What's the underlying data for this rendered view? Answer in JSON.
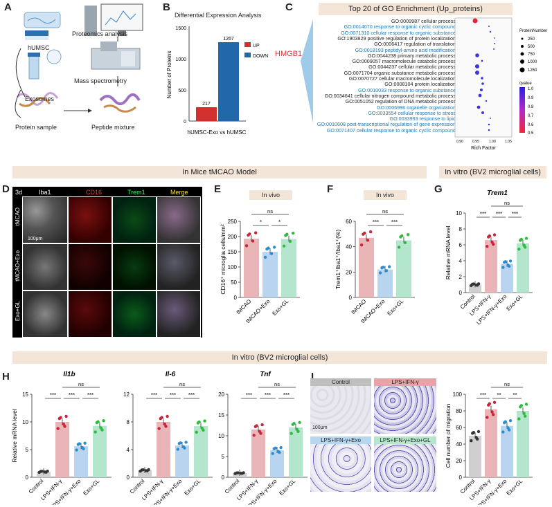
{
  "panels": {
    "a": "A",
    "b": "B",
    "c": "C",
    "d": "D",
    "e": "E",
    "f": "F",
    "g": "G",
    "h": "H",
    "i": "I"
  },
  "panelA": {
    "labels": [
      "hUMSC",
      "Exosomes",
      "Protein sample",
      "Peptide mixture",
      "Mass spectrometry",
      "Proteomics analysis"
    ]
  },
  "panelB": {
    "title": "Differential Expression Analysis",
    "ylabel": "Number of Proteins",
    "xlabel": "hUMSC-Exo vs hUMSC",
    "legend": [
      "UP",
      "DOWN"
    ],
    "colors": [
      "#d32f2f",
      "#2167a9"
    ],
    "bar_labels": [
      "217",
      "1267"
    ],
    "ticks": [
      "0",
      "500",
      "1000",
      "1500"
    ]
  },
  "panelC": {
    "title": "Top 20 of GO Enrichment (Up_proteins)",
    "hmgb1": "HMGB1",
    "xlabel": "Rich Factor",
    "size_legend_title": "ProteinNumber",
    "size_legend": [
      "250",
      "500",
      "750",
      "1000",
      "1250"
    ],
    "q_title": "qvalue",
    "q_ticks": [
      "1.0",
      "0.9",
      "0.8",
      "0.7",
      "0.6",
      "0.5"
    ],
    "terms": [
      {
        "t": "GO:0009987 cellular process",
        "blue": false
      },
      {
        "t": "GO:0014070 response to organic cyclic compound",
        "blue": true
      },
      {
        "t": "GO:0071310 cellular response to organic substance",
        "blue": true
      },
      {
        "t": "GO:1903829 positive regulation of protein localization",
        "blue": false
      },
      {
        "t": "GO:0006417 regulation of translation",
        "blue": false
      },
      {
        "t": "GO:0018193 peptidyl-amino acid modification",
        "blue": true
      },
      {
        "t": "GO:0044238 primary metabolic process",
        "blue": false
      },
      {
        "t": "GO:0009057 macromolecule catabolic process",
        "blue": false
      },
      {
        "t": "GO:0044237 cellular metabolic process",
        "blue": false
      },
      {
        "t": "GO:0071704 organic substance metabolic process",
        "blue": false
      },
      {
        "t": "GO:0070727 cellular macromolecule localization",
        "blue": false
      },
      {
        "t": "GO:0008104 protein localization",
        "blue": false
      },
      {
        "t": "GO:0010033 response to organic substance",
        "blue": true
      },
      {
        "t": "GO:0034641 cellular nitrogen compound metabolic process",
        "blue": false
      },
      {
        "t": "GO:0051052 regulation of DNA metabolic process",
        "blue": false
      },
      {
        "t": "GO:0006996 organelle organization",
        "blue": true
      },
      {
        "t": "GO:0033554 cellular response to stress",
        "blue": true
      },
      {
        "t": "GO:0033993 response to lipid",
        "blue": true
      },
      {
        "t": "GO:0010608 post-transcriptional regulation of gene expression",
        "blue": true
      },
      {
        "t": "GO:0071407 cellular response to organic cyclic compound",
        "blue": true
      }
    ],
    "x_ticks": [
      "0.90",
      "0.95",
      "1.00",
      "1.05"
    ]
  },
  "banners": {
    "mice": "In Mice tMCAO Model",
    "vitro1": "In vitro (BV2 microglial cells)",
    "vitro2": "In vitro (BV2 microglial cells)",
    "invivoE": "In vivo",
    "invivoF": "In vivo"
  },
  "panelD": {
    "day": "3d",
    "columns": [
      "Iba1",
      "CD16",
      "Trem1",
      "Merge"
    ],
    "rows": [
      "tMCAO",
      "tMCAO+Exo",
      "Exo+GL"
    ],
    "scale": "100μm"
  },
  "panelE": {
    "ylabel": "CD16⁺ microglia cells/mm²",
    "ticks": [
      "0",
      "50",
      "100",
      "150",
      "200",
      "250"
    ],
    "groups": [
      "tMCAO",
      "tMCAO+Exo",
      "Exo+GL"
    ],
    "sig": [
      "*",
      "*",
      "ns"
    ],
    "values": [
      193,
      150,
      192
    ]
  },
  "panelF": {
    "ylabel": "Trem1⁺Iba1⁺/Iba1⁺(%)",
    "ticks": [
      "0",
      "20",
      "40",
      "60"
    ],
    "groups": [
      "tMCAO",
      "tMCAO+Exo",
      "Exo+GL"
    ],
    "sig": [
      "***",
      "***",
      "ns"
    ],
    "values": [
      47,
      22,
      45
    ]
  },
  "panelG": {
    "title": "Trem1",
    "ylabel": "Relative mRNA level",
    "ticks": [
      "0",
      "2",
      "4",
      "6",
      "8",
      "10"
    ],
    "groups": [
      "Control",
      "LPS+IFN-γ",
      "LPS+IFN-γ+Exo",
      "Exo+GL"
    ],
    "sig": [
      "***",
      "***",
      "***",
      "ns"
    ],
    "values": [
      1.0,
      6.6,
      3.6,
      6.2
    ]
  },
  "panelH": [
    {
      "title": "Il1b",
      "ylabel": "Relative mRNA level",
      "ticks": [
        "0",
        "5",
        "10",
        "15"
      ],
      "groups": [
        "Control",
        "LPS+IFN-γ",
        "LPS+IFN-γ+Exo",
        "Exo+GL"
      ],
      "sig": [
        "***",
        "***",
        "***",
        "ns"
      ],
      "values": [
        1.0,
        10.0,
        5.6,
        9.3
      ]
    },
    {
      "title": "Il-6",
      "ylabel": "",
      "ticks": [
        "0",
        "4",
        "8",
        "12"
      ],
      "groups": [
        "Control",
        "LPS+IFN-γ",
        "LPS+IFN-γ+Exo",
        "Exo+GL"
      ],
      "sig": [
        "***",
        "***",
        "***",
        "ns"
      ],
      "values": [
        1.0,
        8.0,
        4.6,
        7.4
      ]
    },
    {
      "title": "Tnf",
      "ylabel": "",
      "ticks": [
        "0",
        "5",
        "10",
        "15",
        "20"
      ],
      "groups": [
        "Control",
        "LPS+IFN-γ",
        "LPS+IFN-γ+Exo",
        "Exo+GL"
      ],
      "sig": [
        "***",
        "***",
        "***",
        "ns"
      ],
      "values": [
        1.0,
        11.5,
        6.5,
        12.0
      ]
    }
  ],
  "panelI": {
    "images": [
      "Control",
      "LPS+IFN-γ",
      "LPS+IFN-γ+Exo",
      "LPS+IFN-γ+Exo+GL"
    ],
    "scale": "100μm",
    "ylabel": "Cell number of migration",
    "ticks": [
      "0",
      "20",
      "40",
      "60",
      "80",
      "100"
    ],
    "groups": [
      "Control",
      "LPS+IFN-γ",
      "LPS+IFN-γ+Exo",
      "Exo+GL"
    ],
    "sig": [
      "***",
      "**",
      "**",
      "ns"
    ],
    "values": [
      50,
      82,
      62,
      80
    ]
  },
  "colors": {
    "pink": "#e9b5b7",
    "blue": "#b9d4ef",
    "green": "#b3e6cc",
    "gray": "#cfcfcf",
    "dot_pink": "#c9243a",
    "dot_blue": "#2a8fd1",
    "dot_green": "#2ebc3e",
    "dot_gray": "#333333"
  }
}
